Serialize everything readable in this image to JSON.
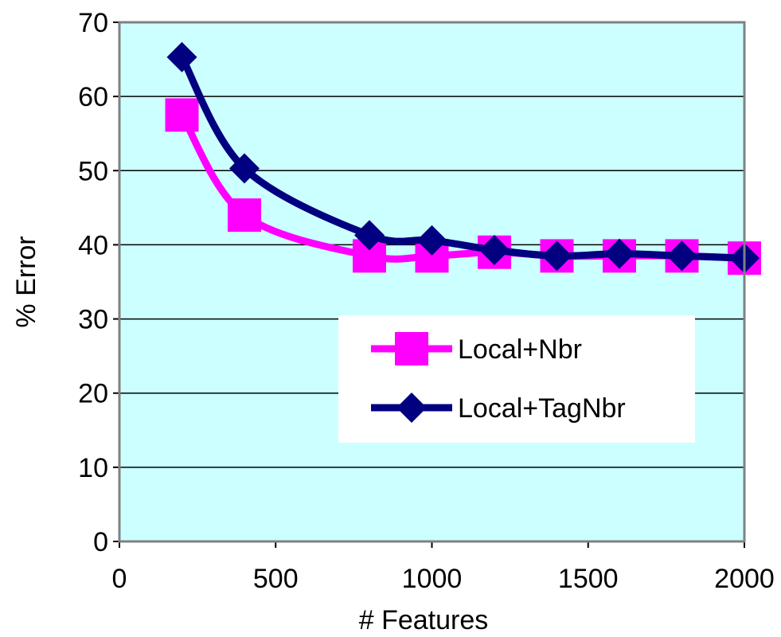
{
  "chart_data": {
    "type": "line",
    "title": "",
    "xlabel": "# Features",
    "ylabel": "% Error",
    "xlim": [
      0,
      2000
    ],
    "ylim": [
      0,
      70
    ],
    "x_ticks": [
      0,
      500,
      1000,
      1500,
      2000
    ],
    "y_ticks": [
      0,
      10,
      20,
      30,
      40,
      50,
      60,
      70
    ],
    "x_tick_labels": [
      "0",
      "500",
      "1000",
      "1500",
      "2000"
    ],
    "y_tick_labels": [
      "0",
      "10",
      "20",
      "30",
      "40",
      "50",
      "60",
      "70"
    ],
    "grid": "horizontal",
    "plot_background": "#ccffff",
    "legend_position": "center-right",
    "x": [
      200,
      400,
      800,
      1000,
      1200,
      1400,
      1600,
      1800,
      2000
    ],
    "series": [
      {
        "name": "Local+Nbr",
        "color": "#ff00ff",
        "marker": "square",
        "values": [
          57.5,
          44,
          38.5,
          38.5,
          39,
          38.5,
          38.5,
          38.5,
          38.2
        ]
      },
      {
        "name": "Local+TagNbr",
        "color": "#000080",
        "marker": "diamond",
        "values": [
          65.3,
          50.3,
          41.3,
          40.6,
          39.3,
          38.5,
          38.8,
          38.5,
          38.2
        ]
      }
    ]
  }
}
